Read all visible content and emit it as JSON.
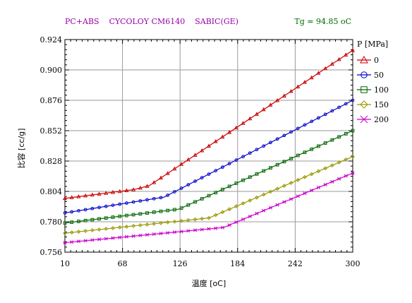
{
  "chart_data": {
    "type": "line",
    "title": "PC+ABS    CYCOLOY CM6140    SABIC(GE)",
    "tg_label": "Tg = 94.85 oC",
    "xlabel": "温度 [oC]",
    "ylabel": "比容 [cc/g]",
    "legend_title": "P [MPa]",
    "legend_position": "right",
    "grid": true,
    "x_tick_labels": [
      "10",
      "68",
      "126",
      "184",
      "242",
      "300"
    ],
    "x_ticks": [
      10,
      68,
      126,
      184,
      242,
      300
    ],
    "xlim": [
      10,
      300
    ],
    "y_tick_labels": [
      "0.924",
      "0.900",
      "0.876",
      "0.852",
      "0.828",
      "0.804",
      "0.780",
      "0.756"
    ],
    "y_ticks": [
      0.924,
      0.9,
      0.876,
      0.852,
      0.828,
      0.804,
      0.78,
      0.756
    ],
    "ylim": [
      0.756,
      0.924
    ],
    "x": [
      10,
      300
    ],
    "series": [
      {
        "name": "0",
        "color": "#cc0000",
        "marker": "triangle",
        "points": [
          [
            10,
            0.7985
          ],
          [
            80,
            0.8055
          ],
          [
            94.85,
            0.8085
          ],
          [
            300,
            0.9155
          ]
        ]
      },
      {
        "name": "50",
        "color": "#0000cc",
        "marker": "circle",
        "points": [
          [
            10,
            0.787
          ],
          [
            110,
            0.7995
          ],
          [
            300,
            0.876
          ]
        ]
      },
      {
        "name": "100",
        "color": "#006600",
        "marker": "square",
        "points": [
          [
            10,
            0.779
          ],
          [
            125,
            0.79
          ],
          [
            300,
            0.852
          ]
        ]
      },
      {
        "name": "150",
        "color": "#999900",
        "marker": "diamond",
        "points": [
          [
            10,
            0.771
          ],
          [
            155,
            0.783
          ],
          [
            300,
            0.8315
          ]
        ]
      },
      {
        "name": "200",
        "color": "#cc00cc",
        "marker": "cross",
        "points": [
          [
            10,
            0.7635
          ],
          [
            170,
            0.7755
          ],
          [
            300,
            0.8185
          ]
        ]
      }
    ]
  }
}
